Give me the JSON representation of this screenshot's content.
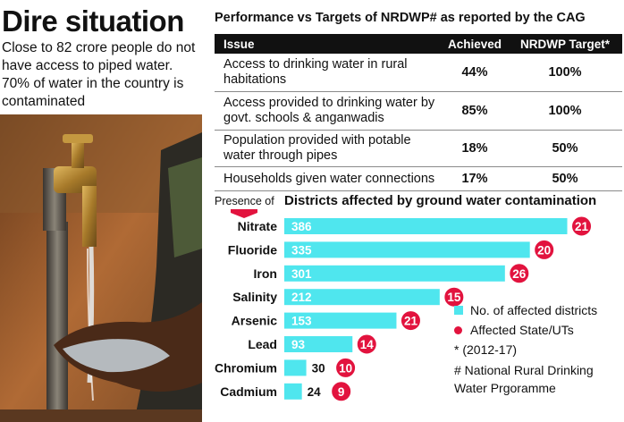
{
  "left": {
    "title": "Dire situation",
    "subtitle": "Close to 82 crore people do not have access to piped water. 70% of water in the country is contaminated"
  },
  "table": {
    "title": "Performance vs Targets of NRDWP# as reported by the CAG",
    "headers": [
      "Issue",
      "Achieved",
      "NRDWP Target*"
    ],
    "rows": [
      {
        "issue": "Access to drinking water in rural habitations",
        "achieved": "44%",
        "target": "100%"
      },
      {
        "issue": "Access provided to drinking water by govt. schools & anganwadis",
        "achieved": "85%",
        "target": "100%"
      },
      {
        "issue": "Population provided with potable water through pipes",
        "achieved": "18%",
        "target": "50%"
      },
      {
        "issue": "Households given water connections",
        "achieved": "17%",
        "target": "50%"
      }
    ]
  },
  "presence_label": "Presence of",
  "colors": {
    "bar": "#4fe6ee",
    "dot": "#e2133e",
    "header_bg": "#111111"
  },
  "legend": {
    "bar_label": "No. of affected districts",
    "dot_label": "Affected State/UTs",
    "note1": "* (2012-17)",
    "note2": "# National Rural Drinking Water Prgoramme"
  },
  "chart_data": {
    "type": "bar",
    "orientation": "horizontal",
    "title": "Districts affected by ground water contamination",
    "categories": [
      "Nitrate",
      "Fluoride",
      "Iron",
      "Salinity",
      "Arsenic",
      "Lead",
      "Chromium",
      "Cadmium"
    ],
    "series": [
      {
        "name": "No. of affected districts",
        "values": [
          386,
          335,
          301,
          212,
          153,
          93,
          30,
          24
        ]
      },
      {
        "name": "Affected State/UTs",
        "values": [
          21,
          20,
          26,
          15,
          21,
          14,
          10,
          9
        ]
      }
    ]
  }
}
